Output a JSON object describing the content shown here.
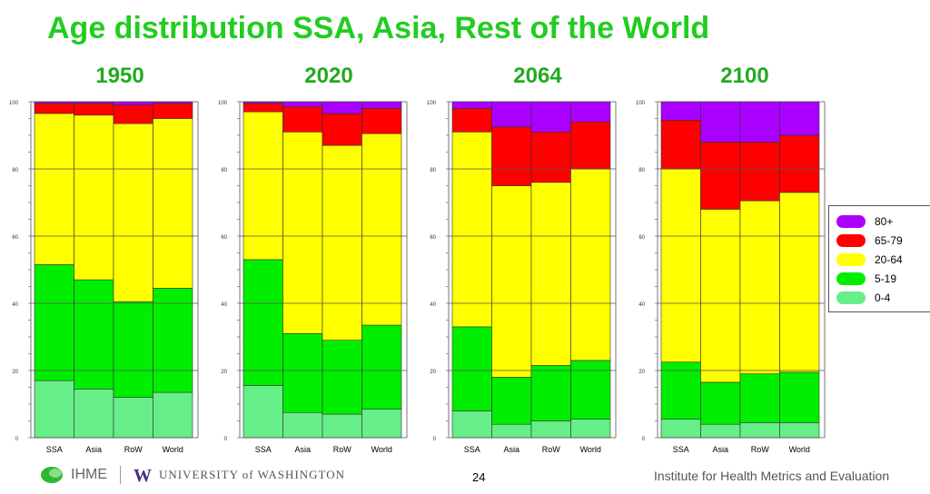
{
  "title": "Age distribution SSA, Asia, Rest of the World",
  "colors": {
    "80+": "#aa00ff",
    "65-79": "#ff0000",
    "20-64": "#ffff00",
    "5-19": "#00ee00",
    "0-4": "#66ee88",
    "title": "#22cc22"
  },
  "legend": [
    "80+",
    "65-79",
    "20-64",
    "5-19",
    "0-4"
  ],
  "footer": {
    "ihme": "IHME",
    "uw": "UNIVERSITY of WASHINGTON",
    "page": "24",
    "institute": "Institute for Health Metrics and Evaluation"
  },
  "chart_data": [
    {
      "type": "bar",
      "stacked": true,
      "title": "1950",
      "categories": [
        "SSA",
        "Asia",
        "RoW",
        "World"
      ],
      "ylim": [
        0,
        100
      ],
      "yticks": [
        0,
        20,
        40,
        60,
        80,
        100
      ],
      "series": [
        {
          "name": "0-4",
          "values": [
            17,
            14.5,
            12,
            13.5
          ]
        },
        {
          "name": "5-19",
          "values": [
            34.5,
            32.5,
            28.5,
            31
          ]
        },
        {
          "name": "20-64",
          "values": [
            45,
            49,
            53,
            50.5
          ]
        },
        {
          "name": "65-79",
          "values": [
            3,
            3.5,
            5.5,
            4.5
          ]
        },
        {
          "name": "80+",
          "values": [
            0.5,
            0.5,
            1,
            0.5
          ]
        }
      ]
    },
    {
      "type": "bar",
      "stacked": true,
      "title": "2020",
      "categories": [
        "SSA",
        "Asia",
        "RoW",
        "World"
      ],
      "ylim": [
        0,
        100
      ],
      "yticks": [
        0,
        20,
        40,
        60,
        80,
        100
      ],
      "series": [
        {
          "name": "0-4",
          "values": [
            15.5,
            7.5,
            7,
            8.5
          ]
        },
        {
          "name": "5-19",
          "values": [
            37.5,
            23.5,
            22,
            25
          ]
        },
        {
          "name": "20-64",
          "values": [
            44,
            60,
            58,
            57
          ]
        },
        {
          "name": "65-79",
          "values": [
            2.5,
            7.5,
            9.5,
            7.5
          ]
        },
        {
          "name": "80+",
          "values": [
            0.5,
            1.5,
            3.5,
            2
          ]
        }
      ]
    },
    {
      "type": "bar",
      "stacked": true,
      "title": "2064",
      "categories": [
        "SSA",
        "Asia",
        "RoW",
        "World"
      ],
      "ylim": [
        0,
        100
      ],
      "yticks": [
        0,
        20,
        40,
        60,
        80,
        100
      ],
      "series": [
        {
          "name": "0-4",
          "values": [
            8,
            4,
            5,
            5.5
          ]
        },
        {
          "name": "5-19",
          "values": [
            25,
            14,
            16.5,
            17.5
          ]
        },
        {
          "name": "20-64",
          "values": [
            58,
            57,
            54.5,
            57
          ]
        },
        {
          "name": "65-79",
          "values": [
            7,
            17.5,
            15,
            14
          ]
        },
        {
          "name": "80+",
          "values": [
            2,
            7.5,
            9,
            6
          ]
        }
      ]
    },
    {
      "type": "bar",
      "stacked": true,
      "title": "2100",
      "categories": [
        "SSA",
        "Asia",
        "RoW",
        "World"
      ],
      "ylim": [
        0,
        100
      ],
      "yticks": [
        0,
        20,
        40,
        60,
        80,
        100
      ],
      "series": [
        {
          "name": "0-4",
          "values": [
            5.5,
            4,
            4.5,
            4.5
          ]
        },
        {
          "name": "5-19",
          "values": [
            17,
            12.5,
            14.5,
            15
          ]
        },
        {
          "name": "20-64",
          "values": [
            57.5,
            51.5,
            51.5,
            53.5
          ]
        },
        {
          "name": "65-79",
          "values": [
            14.5,
            20,
            17.5,
            17
          ]
        },
        {
          "name": "80+",
          "values": [
            5.5,
            12,
            12,
            10
          ]
        }
      ]
    }
  ]
}
